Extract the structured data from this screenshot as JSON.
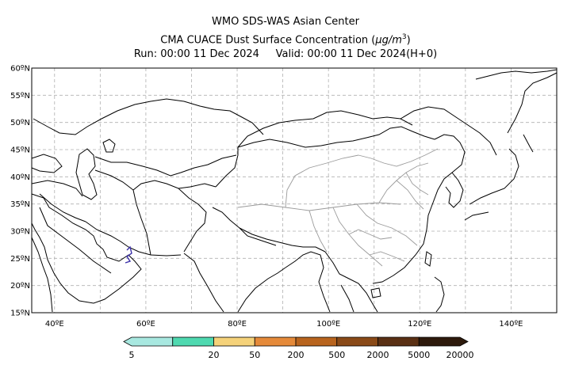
{
  "header": {
    "line1": "WMO SDS-WAS Asian Center",
    "line2_prefix": "CMA CUACE Dust Surface Concentration (",
    "line2_unit_mu": "μ",
    "line2_unit_g": "g/m",
    "line2_unit_exp": "3",
    "line2_suffix": ")",
    "run": "Run: 00:00 11 Dec 2024",
    "valid": "Valid: 00:00 11 Dec 2024(H+0)"
  },
  "map": {
    "lon_range": [
      35,
      150
    ],
    "lat_range": [
      15,
      60
    ],
    "grid": true,
    "lat_ticks": [
      {
        "value": 60,
        "label": "60ºN"
      },
      {
        "value": 55,
        "label": "55ºN"
      },
      {
        "value": 50,
        "label": "50ºN"
      },
      {
        "value": 45,
        "label": "45ºN"
      },
      {
        "value": 40,
        "label": "40ºN"
      },
      {
        "value": 35,
        "label": "35ºN"
      },
      {
        "value": 30,
        "label": "30ºN"
      },
      {
        "value": 25,
        "label": "25ºN"
      },
      {
        "value": 20,
        "label": "20ºN"
      },
      {
        "value": 15,
        "label": "15ºN"
      }
    ],
    "lon_ticks": [
      {
        "value": 40,
        "label": "40ºE"
      },
      {
        "value": 60,
        "label": "60ºE"
      },
      {
        "value": 80,
        "label": "80ºE"
      },
      {
        "value": 100,
        "label": "100ºE"
      },
      {
        "value": 120,
        "label": "120ºE"
      },
      {
        "value": 140,
        "label": "140ºE"
      }
    ],
    "grid_lons": [
      40,
      50,
      60,
      70,
      80,
      90,
      100,
      110,
      120,
      130,
      140
    ],
    "grid_lats": [
      20,
      25,
      30,
      35,
      40,
      45,
      50,
      55
    ],
    "colors": {
      "boundary": "#000000",
      "province": "#9a9a9a",
      "grid": "#b0b0b0",
      "dust_patch": "#3a2fa8"
    }
  },
  "colorbar": {
    "labels": [
      "5",
      "20",
      "50",
      "200",
      "500",
      "2000",
      "5000",
      "20000"
    ],
    "colors": [
      "#a8e8e0",
      "#4fd9b0",
      "#f5d27a",
      "#e58a3a",
      "#b8641e",
      "#8a4a18",
      "#5a3014",
      "#2e1a0c"
    ]
  }
}
